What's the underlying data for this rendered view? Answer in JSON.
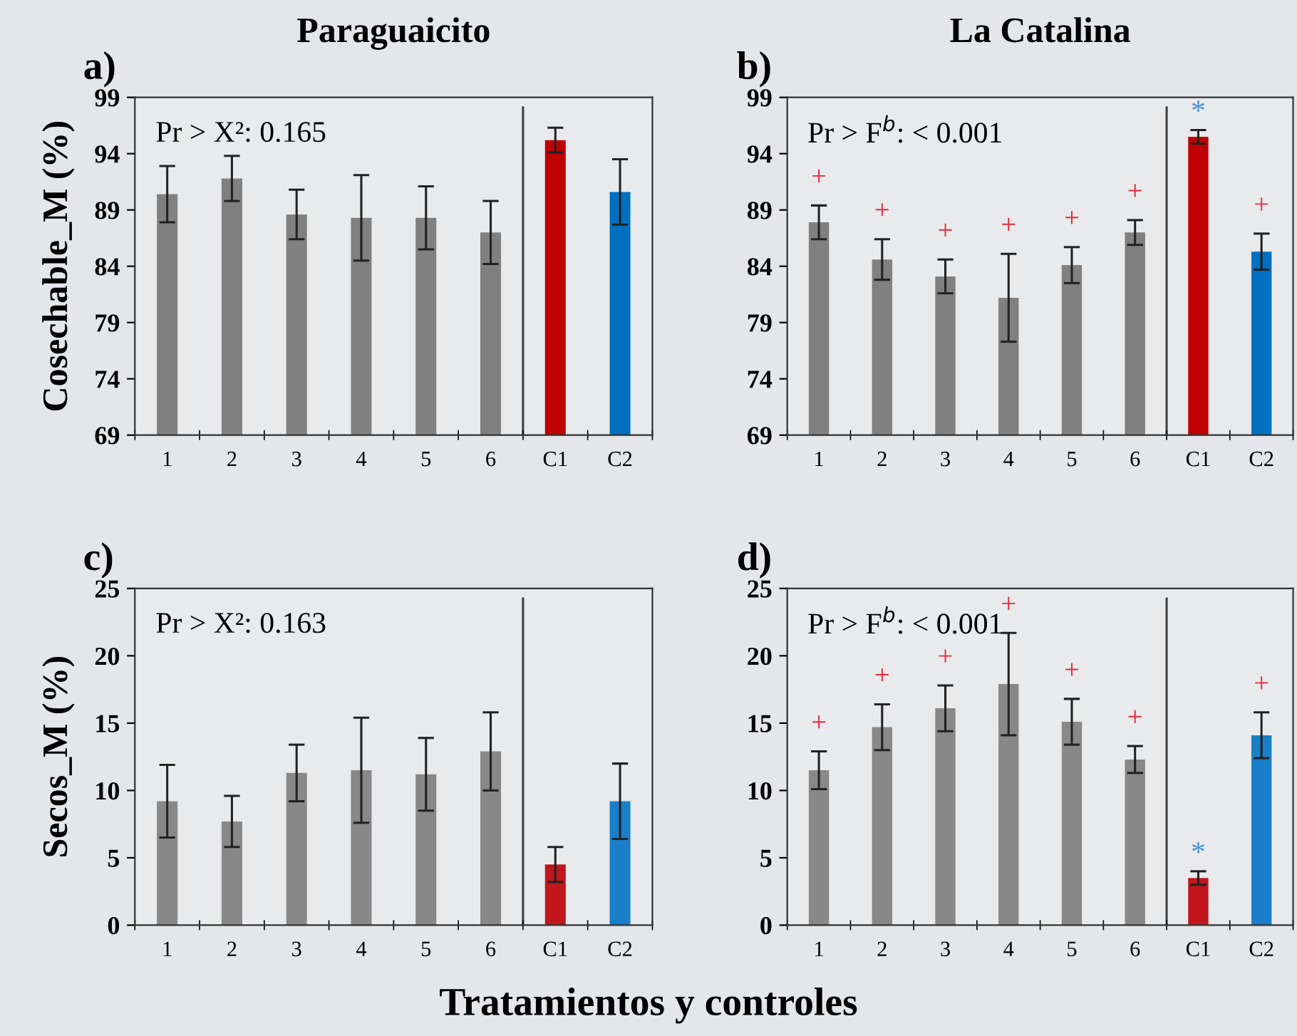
{
  "chart_data": [
    {
      "type": "bar",
      "title": "Paraguaicito",
      "ylabel": "Cosechable_M (%)",
      "categories": [
        "1",
        "2",
        "3",
        "4",
        "5",
        "6",
        "C1",
        "C2"
      ],
      "values": [
        90.4,
        91.8,
        88.6,
        88.3,
        88.3,
        87.0,
        95.2,
        90.6
      ],
      "errors": [
        2.5,
        2.0,
        2.2,
        3.8,
        2.8,
        2.8,
        1.1,
        2.9
      ],
      "colors": [
        "#808080",
        "#808080",
        "#808080",
        "#808080",
        "#808080",
        "#808080",
        "#c00000",
        "#0070c0"
      ],
      "ylim": [
        69,
        99
      ],
      "yticks": [
        69,
        74,
        79,
        84,
        89,
        94,
        99
      ],
      "annotations": [
        "a)",
        "Pr > X²: 0.165"
      ]
    },
    {
      "type": "bar",
      "title": "La Catalina",
      "categories": [
        "1",
        "2",
        "3",
        "4",
        "5",
        "6",
        "C1",
        "C2"
      ],
      "values": [
        87.9,
        84.6,
        83.1,
        81.2,
        84.1,
        87.0,
        95.5,
        85.3
      ],
      "errors": [
        1.5,
        1.8,
        1.5,
        3.9,
        1.6,
        1.1,
        0.6,
        1.6
      ],
      "colors": [
        "#808080",
        "#808080",
        "#808080",
        "#808080",
        "#808080",
        "#808080",
        "#c00000",
        "#0070c0"
      ],
      "ylim": [
        69,
        99
      ],
      "yticks": [
        69,
        74,
        79,
        84,
        89,
        94,
        99
      ],
      "annotations": [
        "b)",
        "Pr > F$^{b}$: < 0.001",
        "+",
        "+",
        "+",
        "+",
        "+",
        "+",
        "*",
        "+"
      ]
    },
    {
      "type": "bar",
      "ylabel": "Secos_M (%)",
      "xlabel": "Tratamientos y controles",
      "categories": [
        "1",
        "2",
        "3",
        "4",
        "5",
        "6",
        "C1",
        "C2"
      ],
      "values": [
        9.2,
        7.7,
        11.3,
        11.5,
        11.2,
        12.9,
        4.5,
        9.2
      ],
      "errors": [
        2.7,
        1.9,
        2.1,
        3.9,
        2.7,
        2.9,
        1.3,
        2.8
      ],
      "colors": [
        "#888888",
        "#888888",
        "#888888",
        "#888888",
        "#888888",
        "#888888",
        "#c0161c",
        "#1a7fc8"
      ],
      "ylim": [
        0,
        25
      ],
      "yticks": [
        0,
        5,
        10,
        15,
        20,
        25
      ],
      "annotations": [
        "c)",
        "Pr > X²: 0.163"
      ]
    },
    {
      "type": "bar",
      "categories": [
        "1",
        "2",
        "3",
        "4",
        "5",
        "6",
        "C1",
        "C2"
      ],
      "values": [
        11.5,
        14.7,
        16.1,
        17.9,
        15.1,
        12.3,
        3.5,
        14.1
      ],
      "errors": [
        1.4,
        1.7,
        1.7,
        3.8,
        1.7,
        1.0,
        0.5,
        1.7
      ],
      "colors": [
        "#888888",
        "#888888",
        "#888888",
        "#888888",
        "#888888",
        "#888888",
        "#c0161c",
        "#1a7fc8"
      ],
      "ylim": [
        0,
        25
      ],
      "yticks": [
        0,
        5,
        10,
        15,
        20,
        25
      ],
      "annotations": [
        "d)",
        "Pr > F$^{b}$: < 0.001",
        "+",
        "+",
        "+",
        "+",
        "+",
        "+",
        "*",
        "+"
      ]
    }
  ]
}
